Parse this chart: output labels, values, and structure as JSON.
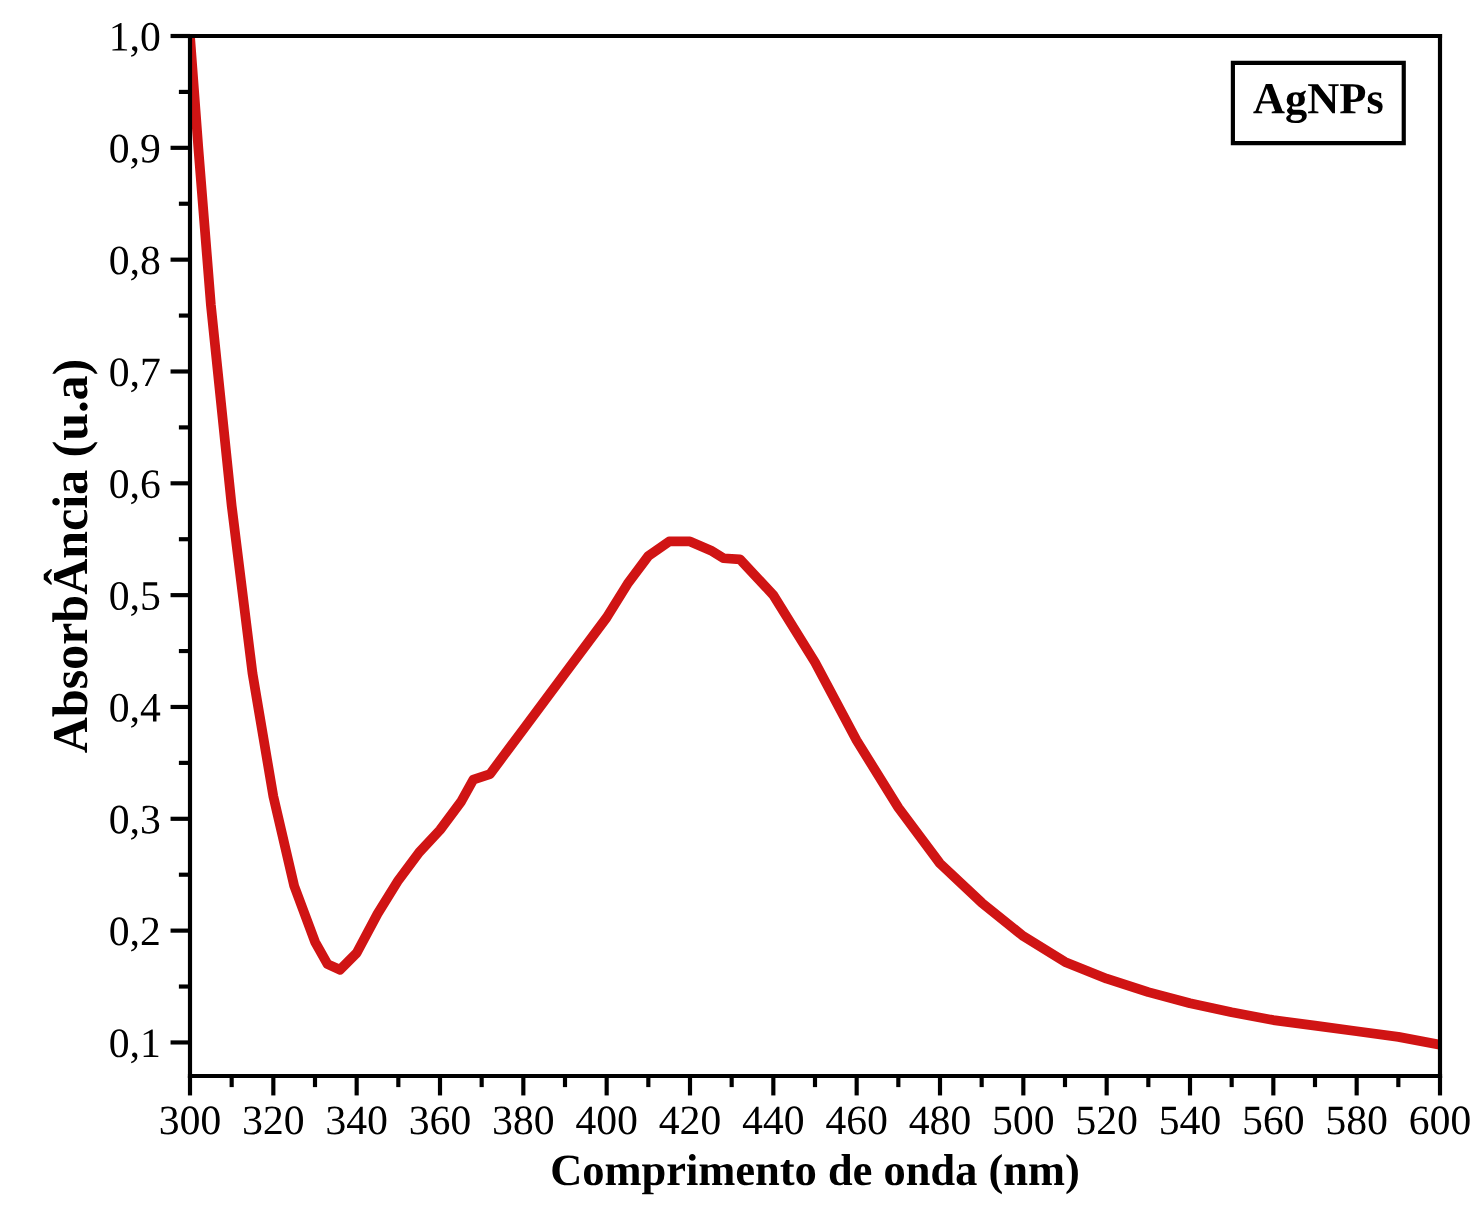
{
  "chart_data": {
    "type": "line",
    "xlabel": "Comprimento de onda (nm)",
    "ylabel": "AbsorbÂncia (u.a)",
    "annotations": [
      "AgNPs"
    ],
    "x": [
      300,
      302,
      305,
      310,
      315,
      320,
      325,
      330,
      333,
      336,
      340,
      345,
      350,
      355,
      360,
      365,
      368,
      372,
      380,
      390,
      400,
      405,
      410,
      415,
      420,
      425,
      428,
      432,
      440,
      450,
      460,
      470,
      480,
      490,
      500,
      510,
      520,
      530,
      540,
      550,
      560,
      570,
      580,
      590,
      600
    ],
    "series": [
      {
        "color": "#d01414",
        "values": [
          1.0,
          0.9,
          0.76,
          0.58,
          0.43,
          0.32,
          0.24,
          0.19,
          0.17,
          0.165,
          0.18,
          0.215,
          0.245,
          0.27,
          0.29,
          0.315,
          0.335,
          0.34,
          0.38,
          0.43,
          0.48,
          0.51,
          0.535,
          0.548,
          0.548,
          0.54,
          0.533,
          0.532,
          0.5,
          0.44,
          0.37,
          0.31,
          0.26,
          0.225,
          0.195,
          0.172,
          0.157,
          0.145,
          0.135,
          0.127,
          0.12,
          0.115,
          0.11,
          0.105,
          0.098
        ]
      }
    ],
    "xlim": [
      300,
      600
    ],
    "xticks": [
      300,
      320,
      340,
      360,
      380,
      400,
      420,
      440,
      460,
      480,
      500,
      520,
      540,
      560,
      580,
      600
    ],
    "ylim": [
      0.07,
      1.0
    ],
    "yticks": [
      {
        "value": 0.1,
        "label": "0,1"
      },
      {
        "value": 0.2,
        "label": "0,2"
      },
      {
        "value": 0.3,
        "label": "0,3"
      },
      {
        "value": 0.4,
        "label": "0,4"
      },
      {
        "value": 0.5,
        "label": "0,5"
      },
      {
        "value": 0.6,
        "label": "0,6"
      },
      {
        "value": 0.7,
        "label": "0,7"
      },
      {
        "value": 0.8,
        "label": "0,8"
      },
      {
        "value": 0.9,
        "label": "0,9"
      },
      {
        "value": 1.0,
        "label": "1,0"
      }
    ],
    "grid": false,
    "legend": false,
    "marker": "none",
    "line_style": "solid"
  }
}
